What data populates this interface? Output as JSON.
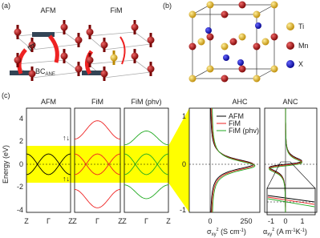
{
  "panel_a": {
    "label": "(a)",
    "titles": [
      "AFM",
      "FiM"
    ],
    "gradient_label": "∇T",
    "bc_label": {
      "main": "BC",
      "sub": "ANE"
    }
  },
  "panel_b": {
    "label": "(b)",
    "legend": [
      "Ti",
      "Mn",
      "X"
    ]
  },
  "panel_c": {
    "label": "(c)",
    "band_titles": [
      "AFM",
      "FiM",
      "FiM (phv)"
    ],
    "y_label": "Energy (eV)",
    "y_ticks": [
      "4",
      "2",
      "0",
      "-2",
      "-4"
    ],
    "k_labels": [
      "Z",
      "Γ",
      "Z"
    ],
    "ahc": {
      "title": "AHC",
      "y_ticks": [
        "1",
        "0",
        "-1"
      ],
      "x_ticks": [
        "0",
        "250"
      ],
      "x_label": [
        "σ",
        "xy",
        "z",
        " (S cm",
        "-1",
        ")"
      ],
      "legend": [
        "AFM",
        "FiM",
        "FiM (phv)"
      ]
    },
    "anc": {
      "title": "ANC",
      "x_ticks": [
        "-1",
        "0",
        "1"
      ],
      "x_label": [
        "α",
        "xy",
        "z",
        " (A m",
        "-1",
        "K",
        "-1",
        ")"
      ]
    }
  }
}
